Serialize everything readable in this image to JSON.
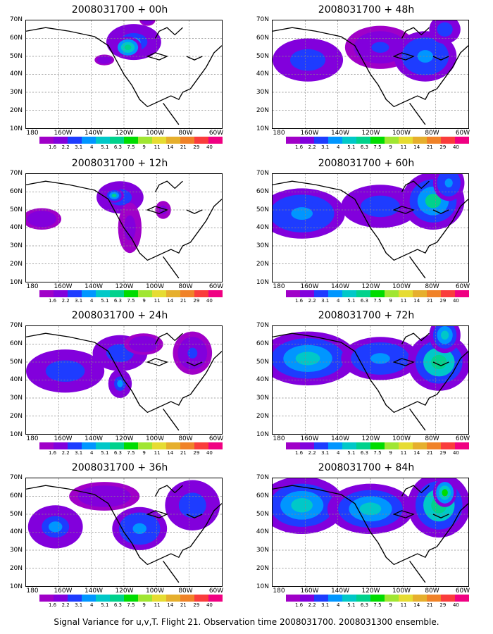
{
  "figure": {
    "caption": "Signal Variance for u,v,T. Flight 21. Observation time 2008031700. 2008031300 ensemble."
  },
  "panels": [
    {
      "title": "2008031700 + 00h",
      "lead": "00h",
      "blobs": [
        [
          55,
          48,
          14,
          10,
          0.45
        ],
        [
          52,
          45,
          7,
          6,
          0.9
        ],
        [
          40,
          38,
          5,
          3,
          0.2
        ],
        [
          62,
          60,
          4,
          3,
          0.2
        ]
      ]
    },
    {
      "title": "2008031700 + 12h",
      "lead": "12h",
      "blobs": [
        [
          48,
          47,
          12,
          9,
          0.35
        ],
        [
          45,
          48,
          5,
          4,
          0.75
        ],
        [
          53,
          30,
          6,
          14,
          0.15
        ],
        [
          8,
          35,
          10,
          6,
          0.2
        ],
        [
          70,
          40,
          4,
          5,
          0.15
        ]
      ]
    },
    {
      "title": "2008031700 + 24h",
      "lead": "24h",
      "blobs": [
        [
          20,
          35,
          20,
          12,
          0.35
        ],
        [
          48,
          45,
          14,
          10,
          0.4
        ],
        [
          48,
          28,
          6,
          8,
          0.45
        ],
        [
          85,
          45,
          10,
          12,
          0.25
        ],
        [
          60,
          50,
          10,
          6,
          0.2
        ]
      ]
    },
    {
      "title": "2008031700 + 36h",
      "lead": "36h",
      "blobs": [
        [
          15,
          33,
          14,
          12,
          0.45
        ],
        [
          58,
          32,
          14,
          12,
          0.55
        ],
        [
          85,
          45,
          14,
          14,
          0.35
        ],
        [
          40,
          50,
          18,
          8,
          0.2
        ]
      ]
    },
    {
      "title": "2008031700 + 48h",
      "lead": "48h",
      "blobs": [
        [
          18,
          38,
          18,
          12,
          0.35
        ],
        [
          55,
          45,
          18,
          12,
          0.25
        ],
        [
          78,
          40,
          16,
          14,
          0.55
        ],
        [
          88,
          55,
          8,
          8,
          0.4
        ]
      ]
    },
    {
      "title": "2008031700 + 60h",
      "lead": "60h",
      "blobs": [
        [
          15,
          38,
          22,
          14,
          0.5
        ],
        [
          55,
          42,
          20,
          12,
          0.4
        ],
        [
          82,
          45,
          16,
          16,
          0.75
        ],
        [
          90,
          55,
          8,
          10,
          0.5
        ]
      ]
    },
    {
      "title": "2008031700 + 72h",
      "lead": "72h",
      "blobs": [
        [
          18,
          42,
          25,
          15,
          0.6
        ],
        [
          55,
          42,
          20,
          12,
          0.55
        ],
        [
          85,
          40,
          16,
          16,
          0.8
        ],
        [
          88,
          55,
          8,
          10,
          0.65
        ]
      ]
    },
    {
      "title": "2008031700 + 84h",
      "lead": "84h",
      "blobs": [
        [
          15,
          45,
          22,
          16,
          0.7
        ],
        [
          50,
          43,
          22,
          14,
          0.6
        ],
        [
          85,
          45,
          16,
          18,
          0.8
        ],
        [
          88,
          52,
          6,
          8,
          0.95
        ]
      ]
    }
  ],
  "axes": {
    "y_ticks": [
      "70N",
      "60N",
      "50N",
      "40N",
      "30N",
      "20N",
      "10N"
    ],
    "x_ticks": [
      "180",
      "160W",
      "140W",
      "120W",
      "100W",
      "80W",
      "60W"
    ]
  },
  "colorbar": {
    "labels": [
      "1.6",
      "2.2",
      "3.1",
      "4",
      "5.1",
      "6.3",
      "7.5",
      "9",
      "11",
      "14",
      "21",
      "29",
      "40"
    ],
    "colors": [
      "#a000c8",
      "#8200dc",
      "#1e3cff",
      "#0096ff",
      "#00c8c8",
      "#00d28c",
      "#00dc00",
      "#a0e632",
      "#e6dc32",
      "#e6af2d",
      "#f08228",
      "#fa3c3c",
      "#f00082"
    ]
  }
}
